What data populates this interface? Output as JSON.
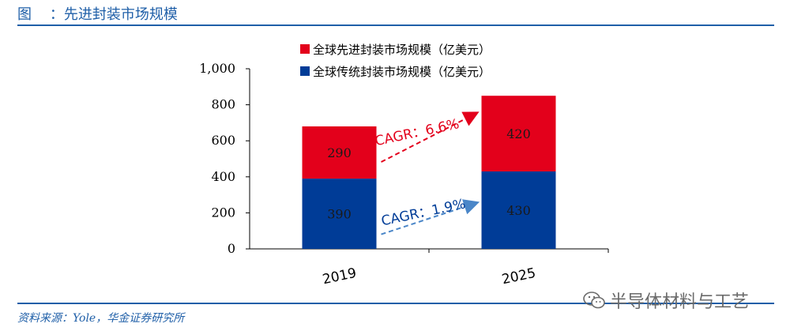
{
  "header": {
    "title": "图    ：先进封装市场规模"
  },
  "source": "资料来源：Yole，华金证券研究所",
  "watermark": {
    "text": "半导体材料与工艺",
    "icon": "wechat-icon"
  },
  "colors": {
    "advanced": "#e3001b",
    "traditional": "#003c97",
    "accent": "#1f5fa8",
    "cagr_traditional": "#4a86c8"
  },
  "chart_data": {
    "type": "bar",
    "stacked": true,
    "categories": [
      "2019",
      "2025"
    ],
    "series": [
      {
        "name": "全球传统封装市场规模（亿美元）",
        "values": [
          390,
          430
        ]
      },
      {
        "name": "全球先进封装市场规模（亿美元）",
        "values": [
          290,
          420
        ]
      }
    ],
    "ylim": [
      0,
      1000
    ],
    "yticks": [
      "0",
      "200",
      "400",
      "600",
      "800",
      "1,000"
    ],
    "annotations": [
      {
        "text": "CAGR：6.6%",
        "series": "全球先进封装市场规模（亿美元）"
      },
      {
        "text": "CAGR：1.9%",
        "series": "全球传统封装市场规模（亿美元）"
      }
    ],
    "legend_position": "top",
    "grid": false
  }
}
